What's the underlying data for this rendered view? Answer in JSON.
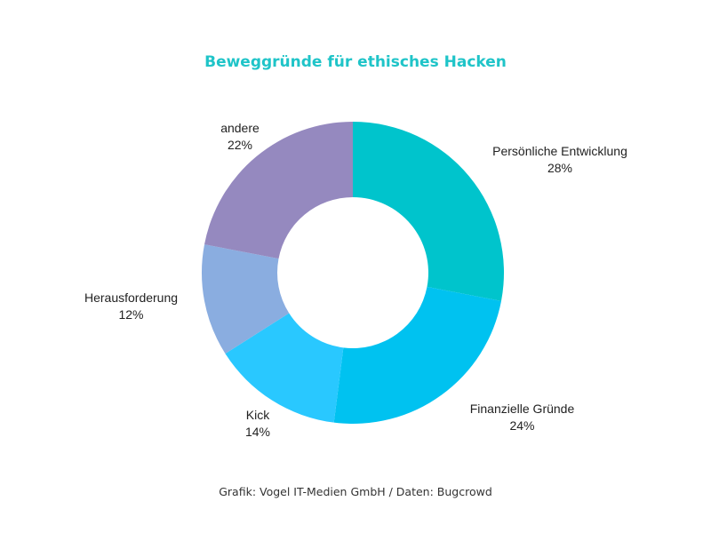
{
  "header": {
    "title": "Beweggründe für ethisches Hacken"
  },
  "footer": {
    "source": "Grafik: Vogel IT-Medien GmbH / Daten: Bugcrowd"
  },
  "labels": {
    "persoenlich": {
      "name": "Persönliche Entwicklung",
      "pct": "28%"
    },
    "finanziell": {
      "name": "Finanzielle Gründe",
      "pct": "24%"
    },
    "kick": {
      "name": "Kick",
      "pct": "14%"
    },
    "herausforderung": {
      "name": "Herausforderung",
      "pct": "12%"
    },
    "andere": {
      "name": "andere",
      "pct": "22%"
    }
  },
  "chart_data": {
    "type": "pie",
    "subtype": "donut",
    "title": "Beweggründe für ethisches Hacken",
    "categories": [
      "Persönliche Entwicklung",
      "Finanzielle Gründe",
      "Kick",
      "Herausforderung",
      "andere"
    ],
    "values": [
      28,
      24,
      14,
      12,
      22
    ],
    "unit": "%",
    "colors": [
      "#00C4CC",
      "#00C2F0",
      "#29C8FF",
      "#8AADE0",
      "#9589BF"
    ],
    "legend": "none (direct labels)",
    "source": "Grafik: Vogel IT-Medien GmbH / Daten: Bugcrowd"
  }
}
